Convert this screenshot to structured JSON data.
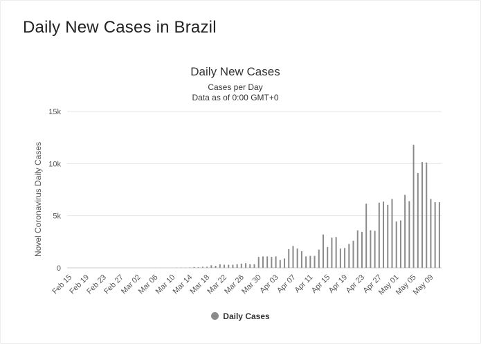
{
  "page": {
    "title": "Daily New Cases in Brazil"
  },
  "chart_data": {
    "type": "bar",
    "title": "Daily New Cases",
    "subtitle": [
      "Cases per Day",
      "Data as of 0:00 GMT+0"
    ],
    "xlabel": "",
    "ylabel": "Novel Coronavirus Daily Cases",
    "ylim": [
      0,
      15000
    ],
    "yticks": [
      0,
      5000,
      10000,
      15000
    ],
    "ytick_labels": [
      "0",
      "5k",
      "10k",
      "15k"
    ],
    "grid": true,
    "legend_position": "bottom-center",
    "categories": [
      "Feb 15",
      "Feb 16",
      "Feb 17",
      "Feb 18",
      "Feb 19",
      "Feb 20",
      "Feb 21",
      "Feb 22",
      "Feb 23",
      "Feb 24",
      "Feb 25",
      "Feb 26",
      "Feb 27",
      "Feb 28",
      "Feb 29",
      "Mar 01",
      "Mar 02",
      "Mar 03",
      "Mar 04",
      "Mar 05",
      "Mar 06",
      "Mar 07",
      "Mar 08",
      "Mar 09",
      "Mar 10",
      "Mar 11",
      "Mar 12",
      "Mar 13",
      "Mar 14",
      "Mar 15",
      "Mar 16",
      "Mar 17",
      "Mar 18",
      "Mar 19",
      "Mar 20",
      "Mar 21",
      "Mar 22",
      "Mar 23",
      "Mar 24",
      "Mar 25",
      "Mar 26",
      "Mar 27",
      "Mar 28",
      "Mar 29",
      "Mar 30",
      "Mar 31",
      "Apr 01",
      "Apr 02",
      "Apr 03",
      "Apr 04",
      "Apr 05",
      "Apr 06",
      "Apr 07",
      "Apr 08",
      "Apr 09",
      "Apr 10",
      "Apr 11",
      "Apr 12",
      "Apr 13",
      "Apr 14",
      "Apr 15",
      "Apr 16",
      "Apr 17",
      "Apr 18",
      "Apr 19",
      "Apr 20",
      "Apr 21",
      "Apr 22",
      "Apr 23",
      "Apr 24",
      "Apr 25",
      "Apr 26",
      "Apr 27",
      "Apr 28",
      "Apr 29",
      "Apr 30",
      "May 01",
      "May 02",
      "May 03",
      "May 04",
      "May 05",
      "May 06",
      "May 07",
      "May 08",
      "May 09",
      "May 10",
      "May 11"
    ],
    "xtick_labels": [
      "Feb 15",
      "Feb 19",
      "Feb 23",
      "Feb 27",
      "Mar 02",
      "Mar 06",
      "Mar 10",
      "Mar 14",
      "Mar 18",
      "Mar 22",
      "Mar 26",
      "Mar 30",
      "Apr 03",
      "Apr 07",
      "Apr 11",
      "Apr 15",
      "Apr 19",
      "Apr 23",
      "Apr 27",
      "May 01",
      "May 05",
      "May 09"
    ],
    "series": [
      {
        "name": "Daily Cases",
        "color": "#8a8a8a",
        "values": [
          0,
          0,
          0,
          0,
          0,
          0,
          0,
          0,
          0,
          0,
          0,
          1,
          0,
          0,
          1,
          0,
          0,
          0,
          0,
          5,
          5,
          6,
          6,
          6,
          5,
          18,
          25,
          20,
          34,
          80,
          60,
          100,
          100,
          250,
          200,
          350,
          300,
          300,
          300,
          350,
          400,
          450,
          350,
          350,
          1050,
          1100,
          1100,
          1050,
          1100,
          750,
          900,
          1800,
          2100,
          1850,
          1600,
          1100,
          1150,
          1150,
          1750,
          3200,
          2000,
          2900,
          2950,
          1850,
          1900,
          2300,
          2600,
          3600,
          3450,
          6150,
          3600,
          3550,
          6250,
          6350,
          6050,
          6600,
          4450,
          4550,
          7000,
          6400,
          11800,
          9100,
          10150,
          10100,
          6600,
          6300,
          6300
        ]
      }
    ]
  }
}
